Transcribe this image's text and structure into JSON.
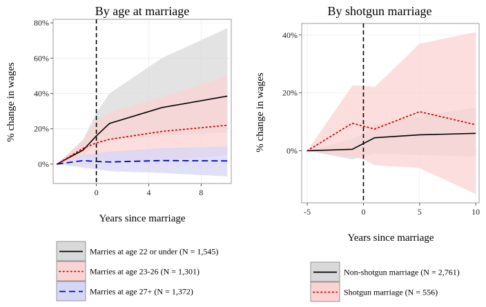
{
  "chart_data": [
    {
      "type": "line",
      "title": "By age at marriage",
      "xlabel": "Years since marriage",
      "ylabel": "% change in wages",
      "xlim": [
        -3.3,
        10.3
      ],
      "ylim": [
        -11,
        82
      ],
      "x_ticks": [
        0,
        4,
        8
      ],
      "x_tick_labels": [
        "0",
        "4",
        "8"
      ],
      "y_ticks": [
        0,
        20,
        40,
        60,
        80
      ],
      "y_tick_labels": [
        "0%",
        "20%",
        "40%",
        "60%",
        "80%"
      ],
      "marriage_line_x": 0,
      "legend_position": "bottom",
      "grid": true,
      "series": [
        {
          "name": "Marries at age 22 or under (N = 1,545)",
          "line_style": "solid",
          "color": "#000000",
          "band_color": "#d9d9d9",
          "x": [
            -3,
            -1,
            0,
            1,
            5,
            10
          ],
          "values": [
            0,
            8,
            16,
            23,
            32,
            38.5
          ],
          "lower": [
            0,
            5,
            11,
            14,
            16,
            18
          ],
          "upper": [
            0,
            14,
            29,
            40,
            60,
            77
          ]
        },
        {
          "name": "Marries at age 23-26 (N = 1,301)",
          "line_style": "dotted",
          "color": "#d40000",
          "band_color": "#fbd3d3",
          "x": [
            -3,
            -1,
            0,
            1,
            5,
            10
          ],
          "values": [
            0,
            9,
            12,
            14,
            18.5,
            22
          ],
          "lower": [
            0,
            4,
            3,
            2,
            2,
            5
          ],
          "upper": [
            0,
            14,
            24,
            29,
            38,
            50
          ]
        },
        {
          "name": "Marries at age 27+ (N = 1,372)",
          "line_style": "dashed",
          "color": "#0000cc",
          "band_color": "#d6d6f7",
          "x": [
            -3,
            -1,
            0,
            1,
            5,
            10
          ],
          "values": [
            0,
            2,
            1.5,
            1.2,
            2,
            1.8
          ],
          "lower": [
            0,
            -2,
            -3,
            -4,
            -5,
            -7
          ],
          "upper": [
            0,
            5,
            6,
            7,
            9,
            10
          ]
        }
      ]
    },
    {
      "type": "line",
      "title": "By shotgun marriage",
      "xlabel": "Years since marriage",
      "ylabel": "% change in wages",
      "xlim": [
        -5.5,
        10.3
      ],
      "ylim": [
        -18,
        44
      ],
      "x_ticks": [
        -5,
        0,
        5,
        10
      ],
      "x_tick_labels": [
        "-5",
        "0",
        "5",
        "10"
      ],
      "y_ticks": [
        0,
        20,
        40
      ],
      "y_tick_labels": [
        "0%",
        "20%",
        "40%"
      ],
      "marriage_line_x": 0,
      "legend_position": "bottom",
      "grid": true,
      "series": [
        {
          "name": "Non-shotgun marriage (N = 2,761)",
          "line_style": "solid",
          "color": "#000000",
          "band_color": "#d9d9d9",
          "x": [
            -5,
            -1,
            0,
            1,
            5,
            10
          ],
          "values": [
            0,
            0.5,
            2.5,
            4.5,
            5.5,
            6
          ],
          "lower": [
            0,
            -3,
            -2,
            -1,
            -1.5,
            -2
          ],
          "upper": [
            0,
            4,
            6,
            9,
            12,
            15
          ]
        },
        {
          "name": "Shotgun marriage (N = 556)",
          "line_style": "dotted",
          "color": "#d40000",
          "band_color": "#fbd3d3",
          "x": [
            -5,
            -1,
            0,
            1,
            5,
            10
          ],
          "values": [
            0,
            9.5,
            8.5,
            7.5,
            13.5,
            9
          ],
          "lower": [
            0,
            -2,
            -3,
            -5,
            -6,
            -15
          ],
          "upper": [
            0,
            22.5,
            22.5,
            22,
            37,
            41
          ]
        }
      ]
    }
  ]
}
